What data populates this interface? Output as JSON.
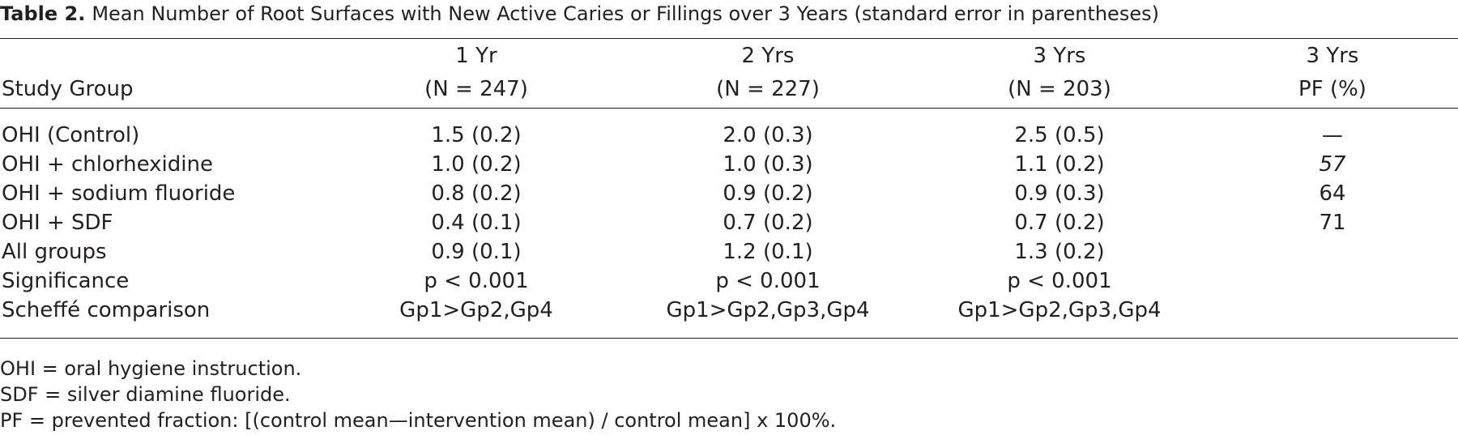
{
  "caption": {
    "label": "Table 2.",
    "text": "Mean Number of Root Surfaces with New Active Caries or Fillings over 3 Years (standard error in parentheses)"
  },
  "header": {
    "study_group": "Study Group",
    "columns": [
      {
        "line1": "1 Yr",
        "line2": "(N = 247)"
      },
      {
        "line1": "2 Yrs",
        "line2": "(N = 227)"
      },
      {
        "line1": "3 Yrs",
        "line2": "(N = 203)"
      },
      {
        "line1": "3 Yrs",
        "line2": "PF (%)"
      }
    ]
  },
  "rows": [
    {
      "group": "OHI (Control)",
      "y1": "1.5 (0.2)",
      "y2": "2.0 (0.3)",
      "y3": "2.5 (0.5)",
      "pf": "—"
    },
    {
      "group": "OHI + chlorhexidine",
      "y1": "1.0 (0.2)",
      "y2": "1.0 (0.3)",
      "y3": "1.1 (0.2)",
      "pf": "57"
    },
    {
      "group": "OHI + sodium fluoride",
      "y1": "0.8 (0.2)",
      "y2": "0.9 (0.2)",
      "y3": "0.9 (0.3)",
      "pf": "64"
    },
    {
      "group": "OHI + SDF",
      "y1": "0.4 (0.1)",
      "y2": "0.7 (0.2)",
      "y3": "0.7 (0.2)",
      "pf": "71"
    },
    {
      "group": "All groups",
      "y1": "0.9 (0.1)",
      "y2": "1.2 (0.1)",
      "y3": "1.3 (0.2)",
      "pf": ""
    },
    {
      "group": "Significance",
      "y1": "p < 0.001",
      "y2": "p < 0.001",
      "y3": "p < 0.001",
      "pf": ""
    },
    {
      "group": "Scheffé comparison",
      "y1": "Gp1>Gp2,Gp4",
      "y2": "Gp1>Gp2,Gp3,Gp4",
      "y3": "Gp1>Gp2,Gp3,Gp4",
      "pf": ""
    }
  ],
  "footnotes": [
    "OHI = oral hygiene instruction.",
    "SDF = silver diamine fluoride.",
    "PF = prevented fraction: [(control mean—intervention mean) / control mean] x 100%."
  ]
}
